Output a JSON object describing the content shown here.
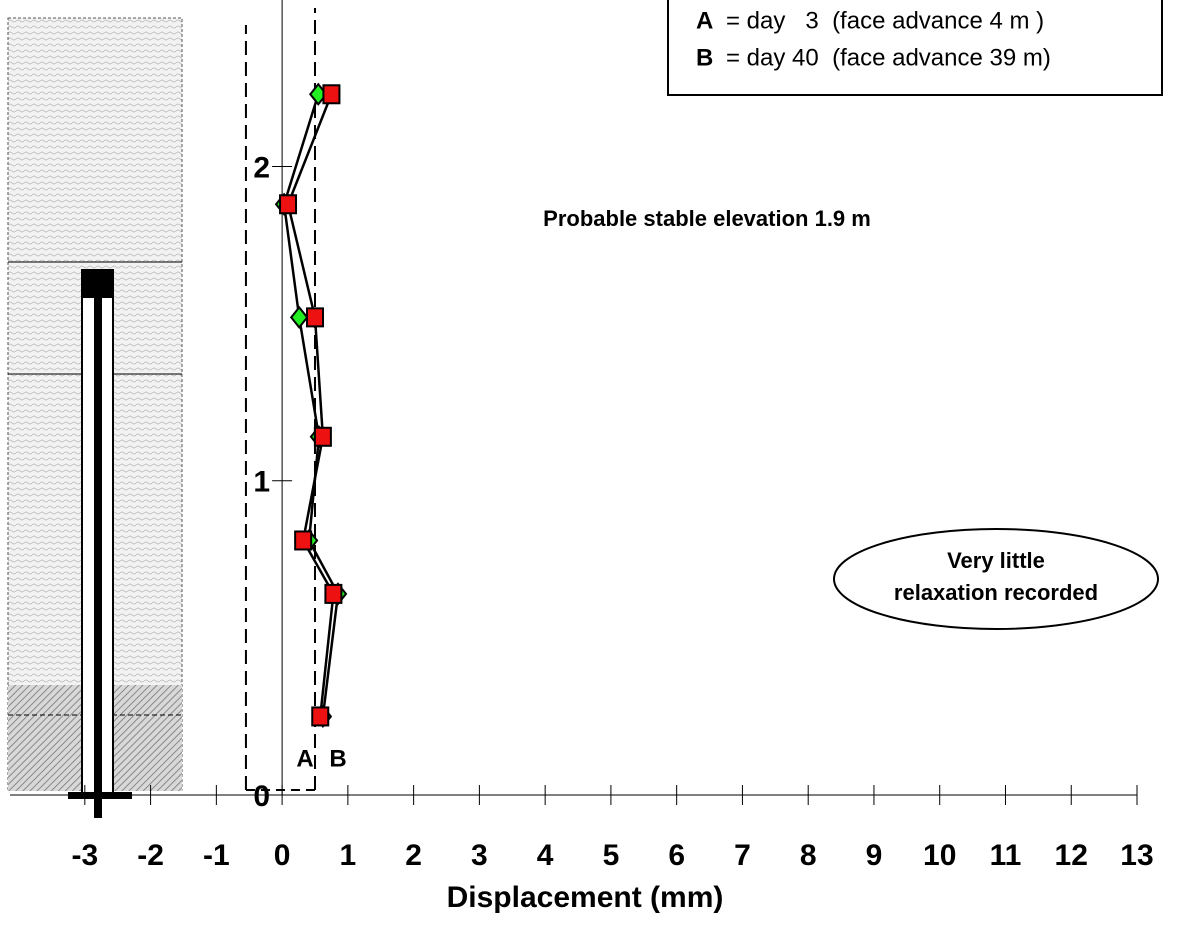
{
  "chart_data": {
    "type": "line",
    "x_label": "Displacement (mm)",
    "xlim": [
      -4.29,
      13.73
    ],
    "ylim": [
      0,
      2.53
    ],
    "xticks": [
      -3,
      -2,
      -1,
      0,
      1,
      2,
      3,
      4,
      5,
      6,
      7,
      8,
      9,
      10,
      11,
      12,
      13
    ],
    "yticks": [
      0,
      1,
      2
    ],
    "envelope_x": [
      -0.55,
      0.5
    ],
    "series": [
      {
        "name": "A",
        "label": "= day   3  (face advance 4 m )",
        "marker": "diamond",
        "color": "#22ee22",
        "x": [
          0.55,
          0.03,
          0.26,
          0.56,
          0.41,
          0.85,
          0.62
        ],
        "values": [
          2.23,
          1.88,
          1.52,
          1.14,
          0.81,
          0.64,
          0.25
        ]
      },
      {
        "name": "B",
        "label": "= day 40  (face advance 39 m)",
        "marker": "square",
        "color": "#ee1111",
        "x": [
          0.75,
          0.09,
          0.5,
          0.62,
          0.32,
          0.78,
          0.58
        ],
        "values": [
          2.23,
          1.88,
          1.52,
          1.14,
          0.81,
          0.64,
          0.25
        ]
      }
    ],
    "annotations": [
      "Probable stable elevation 1.9 m",
      "Very little",
      "relaxation recorded"
    ]
  }
}
